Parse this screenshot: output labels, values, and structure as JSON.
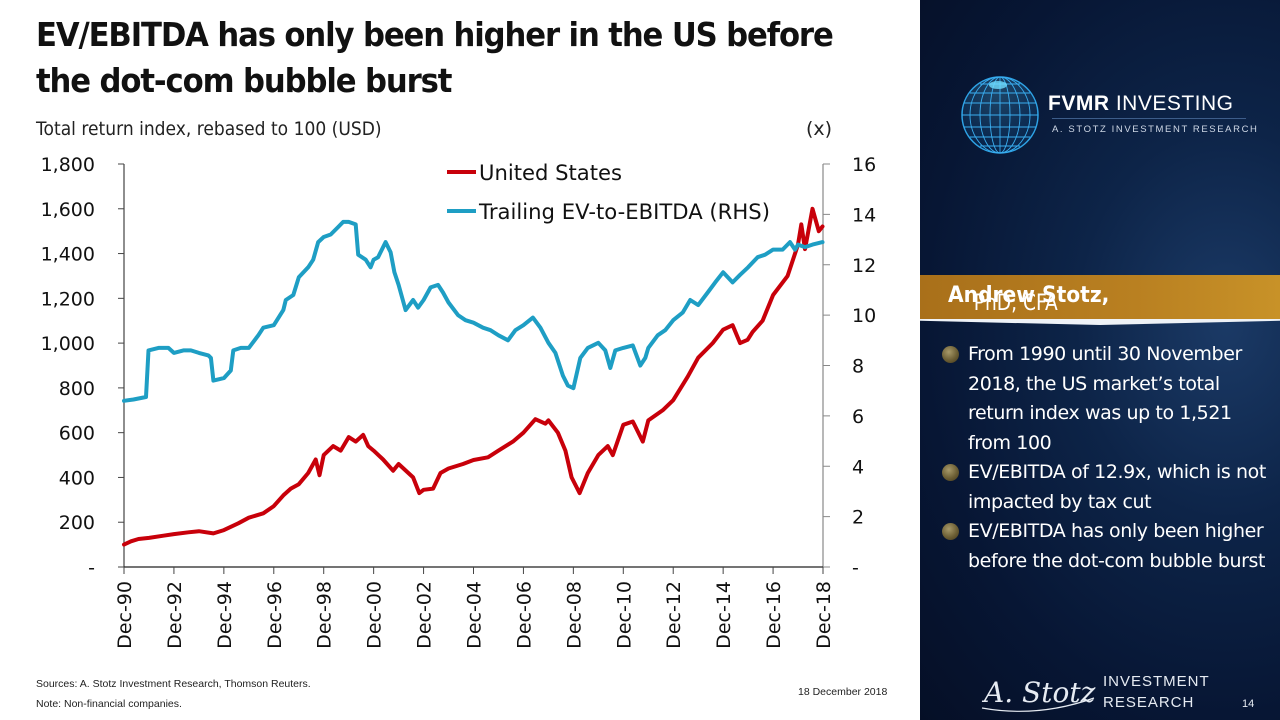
{
  "slide": {
    "title": "EV/EBITDA has only been higher in the US before the dot-com bubble burst",
    "subtitle": "Total return index, rebased to 100 (USD)",
    "right_axis_unit": "(x)",
    "sources": "Sources: A. Stotz Investment Research, Thomson Reuters.",
    "note": "Note: Non-financial companies.",
    "date": "18 December 2018",
    "page_number": "14"
  },
  "sidebar": {
    "brand_bold": "FVMR",
    "brand_rest": " INVESTING",
    "brand_sub": "A. STOTZ INVESTMENT RESEARCH",
    "presenter_name": "Andrew Stotz,",
    "presenter_credentials": " PhD, CFA",
    "bullets": [
      "From 1990 until 30 November 2018, the US market’s total return index was up to 1,521 from 100",
      "EV/EBITDA of 12.9x, which is not impacted by tax cut",
      "EV/EBITDA has only been higher before the dot-com bubble burst"
    ],
    "footer_logo_line1": "INVESTMENT",
    "footer_logo_line2": "RESEARCH",
    "signature": "A. Stotz",
    "colors": {
      "navy": "#071634",
      "gold": "#b98021"
    }
  },
  "chart_data": {
    "type": "line",
    "title": "EV/EBITDA has only been higher in the US before the dot-com bubble burst",
    "ylabel": "Total return index, rebased to 100 (USD)",
    "y2label": "(x)",
    "xlabel": "",
    "x_tick_labels": [
      "Dec-90",
      "Dec-92",
      "Dec-94",
      "Dec-96",
      "Dec-98",
      "Dec-00",
      "Dec-02",
      "Dec-04",
      "Dec-06",
      "Dec-08",
      "Dec-10",
      "Dec-12",
      "Dec-14",
      "Dec-16",
      "Dec-18"
    ],
    "x_range": [
      1990.92,
      2018.92
    ],
    "ylim": [
      0,
      1800
    ],
    "y_ticks": [
      0,
      200,
      400,
      600,
      800,
      1000,
      1200,
      1400,
      1600,
      1800
    ],
    "y_tick_labels": [
      "-",
      "200",
      "400",
      "600",
      "800",
      "1,000",
      "1,200",
      "1,400",
      "1,600",
      "1,800"
    ],
    "y2lim": [
      0,
      16
    ],
    "y2_ticks": [
      0,
      2,
      4,
      6,
      8,
      10,
      12,
      14,
      16
    ],
    "y2_tick_labels": [
      "-",
      "2",
      "4",
      "6",
      "8",
      "10",
      "12",
      "14",
      "16"
    ],
    "grid": false,
    "legend_position": "top-center",
    "series": [
      {
        "name": "United States",
        "axis": "left",
        "color": "#c8000a",
        "x": [
          1990.92,
          1991.2,
          1991.5,
          1991.92,
          1992.5,
          1992.92,
          1993.5,
          1993.92,
          1994.5,
          1994.92,
          1995.5,
          1995.92,
          1996.5,
          1996.92,
          1997.3,
          1997.6,
          1997.92,
          1998.3,
          1998.6,
          1998.75,
          1998.92,
          1999.3,
          1999.6,
          1999.92,
          2000.2,
          2000.5,
          2000.7,
          2000.92,
          2001.3,
          2001.7,
          2001.92,
          2002.5,
          2002.75,
          2002.92,
          2003.3,
          2003.6,
          2003.92,
          2004.5,
          2004.92,
          2005.5,
          2005.92,
          2006.5,
          2006.92,
          2007.4,
          2007.8,
          2007.92,
          2008.3,
          2008.6,
          2008.85,
          2009.17,
          2009.5,
          2009.92,
          2010.3,
          2010.5,
          2010.92,
          2011.3,
          2011.7,
          2011.92,
          2012.5,
          2012.92,
          2013.5,
          2013.92,
          2014.5,
          2014.92,
          2015.3,
          2015.6,
          2015.9,
          2016.1,
          2016.5,
          2016.92,
          2017.5,
          2017.92,
          2018.05,
          2018.2,
          2018.5,
          2018.75,
          2018.9
        ],
        "values": [
          100,
          115,
          125,
          130,
          140,
          147,
          155,
          160,
          150,
          165,
          195,
          220,
          240,
          272,
          320,
          350,
          370,
          420,
          480,
          410,
          500,
          540,
          520,
          580,
          560,
          590,
          540,
          520,
          480,
          430,
          460,
          400,
          330,
          345,
          350,
          420,
          440,
          460,
          478,
          490,
          520,
          560,
          600,
          660,
          640,
          655,
          600,
          520,
          400,
          330,
          420,
          500,
          540,
          500,
          635,
          650,
          560,
          655,
          700,
          745,
          850,
          935,
          1000,
          1060,
          1080,
          1000,
          1015,
          1050,
          1100,
          1215,
          1300,
          1440,
          1530,
          1420,
          1600,
          1500,
          1521
        ]
      },
      {
        "name": "Trailing EV-to-EBITDA (RHS)",
        "axis": "right",
        "color": "#1e9ec4",
        "x": [
          1990.92,
          1991.3,
          1991.8,
          1991.9,
          1992.3,
          1992.7,
          1992.92,
          1993.3,
          1993.6,
          1993.92,
          1994.3,
          1994.4,
          1994.5,
          1994.92,
          1995.2,
          1995.3,
          1995.6,
          1995.92,
          1996.3,
          1996.5,
          1996.92,
          1997.3,
          1997.4,
          1997.7,
          1997.92,
          1998.3,
          1998.5,
          1998.7,
          1998.92,
          1999.2,
          1999.5,
          1999.7,
          1999.92,
          2000.2,
          2000.3,
          2000.6,
          2000.8,
          2000.92,
          2001.1,
          2001.4,
          2001.6,
          2001.75,
          2001.92,
          2002.2,
          2002.5,
          2002.7,
          2002.92,
          2003.2,
          2003.5,
          2003.7,
          2003.92,
          2004.3,
          2004.6,
          2004.92,
          2005.3,
          2005.6,
          2005.92,
          2006.3,
          2006.6,
          2006.92,
          2007.3,
          2007.6,
          2007.92,
          2008.2,
          2008.5,
          2008.7,
          2008.92,
          2009.2,
          2009.5,
          2009.92,
          2010.2,
          2010.4,
          2010.6,
          2010.92,
          2011.3,
          2011.6,
          2011.8,
          2011.92,
          2012.3,
          2012.6,
          2012.92,
          2013.3,
          2013.6,
          2013.92,
          2014.3,
          2014.6,
          2014.92,
          2015.3,
          2015.6,
          2015.92,
          2016.3,
          2016.6,
          2016.92,
          2017.3,
          2017.6,
          2017.8,
          2017.92,
          2018.2,
          2018.5,
          2018.9
        ],
        "values": [
          6.6,
          6.65,
          6.75,
          8.6,
          8.7,
          8.7,
          8.5,
          8.6,
          8.6,
          8.5,
          8.4,
          8.3,
          7.4,
          7.5,
          7.8,
          8.6,
          8.7,
          8.7,
          9.2,
          9.5,
          9.6,
          10.2,
          10.6,
          10.8,
          11.5,
          11.9,
          12.2,
          12.9,
          13.1,
          13.2,
          13.5,
          13.7,
          13.7,
          13.6,
          12.4,
          12.2,
          11.9,
          12.2,
          12.3,
          12.9,
          12.5,
          11.7,
          11.2,
          10.2,
          10.6,
          10.3,
          10.6,
          11.1,
          11.2,
          10.9,
          10.5,
          10.0,
          9.8,
          9.7,
          9.5,
          9.4,
          9.2,
          9.0,
          9.4,
          9.6,
          9.9,
          9.5,
          8.9,
          8.5,
          7.6,
          7.2,
          7.1,
          8.3,
          8.7,
          8.9,
          8.6,
          7.9,
          8.6,
          8.7,
          8.8,
          8.0,
          8.3,
          8.7,
          9.2,
          9.4,
          9.8,
          10.1,
          10.6,
          10.4,
          10.9,
          11.3,
          11.7,
          11.3,
          11.6,
          11.9,
          12.3,
          12.4,
          12.6,
          12.6,
          12.9,
          12.6,
          12.8,
          12.7,
          12.8,
          12.9
        ]
      }
    ]
  }
}
